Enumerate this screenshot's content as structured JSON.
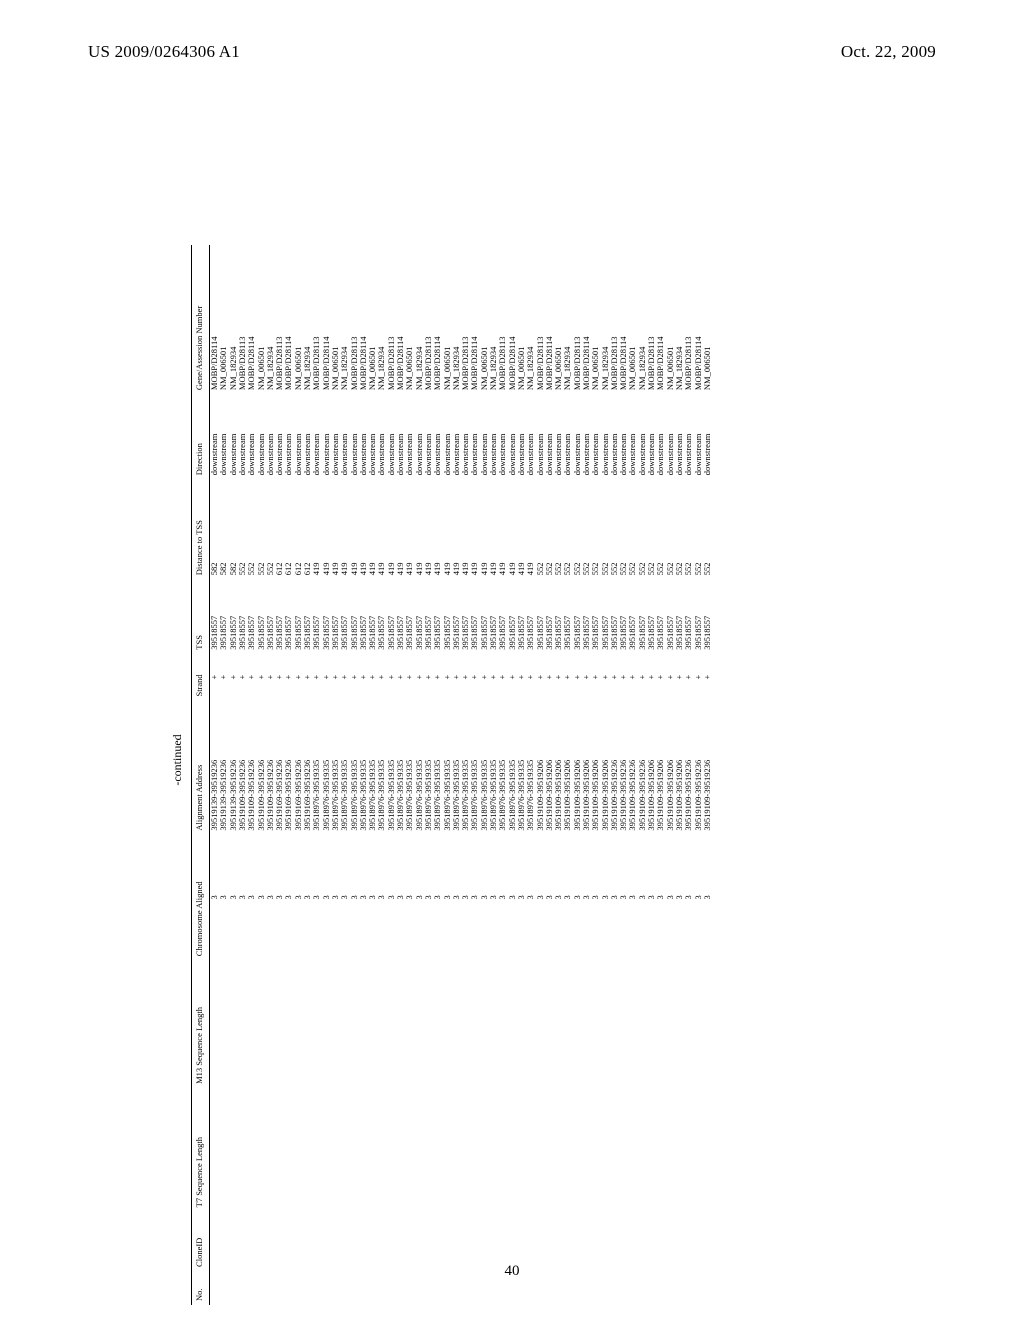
{
  "header": {
    "left": "US 2009/0264306 A1",
    "right": "Oct. 22, 2009",
    "page_number": "40",
    "continued_label": "-continued"
  },
  "table": {
    "columns": [
      "No.",
      "CloneID",
      "T7 Sequence Length",
      "M13 Sequence Length",
      "Chromosome Aligned",
      "Alignment Address",
      "Strand",
      "TSS",
      "Distance to TSS",
      "Direction",
      "Gene/Assession Number"
    ],
    "repeats": 3,
    "blocks": [
      {
        "chromosome": "3",
        "alignment": "39519139-39519236",
        "strand": "+",
        "tss": "39518557",
        "distance": "582",
        "direction": "downstream",
        "genes": [
          "MOBP/D28114",
          "NM_006501",
          "NM_182934"
        ]
      },
      {
        "chromosome": "3",
        "alignment": "39519109-39519236",
        "strand": "+",
        "tss": "39518557",
        "distance": "552",
        "direction": "downstream",
        "genes": [
          "MOBP/D28113",
          "MOBP/D28114",
          "NM_006501",
          "NM_182934"
        ]
      },
      {
        "chromosome": "3",
        "alignment": "39519169-39519236",
        "strand": "+",
        "tss": "39518557",
        "distance": "612",
        "direction": "downstream",
        "genes": [
          "MOBP/D28113",
          "MOBP/D28114",
          "NM_006501",
          "NM_182934"
        ]
      },
      {
        "chromosome": "3",
        "alignment": "39518976-39519335",
        "strand": "+",
        "tss": "39518557",
        "distance": "419",
        "direction": "downstream",
        "genes": [
          "MOBP/D28113",
          "MOBP/D28114",
          "NM_006501",
          "NM_182934"
        ]
      },
      {
        "chromosome": "3",
        "alignment": "39518976-39519335",
        "strand": "+",
        "tss": "39518557",
        "distance": "419",
        "direction": "downstream",
        "genes": [
          "MOBP/D28113",
          "MOBP/D28114",
          "NM_006501",
          "NM_182934"
        ]
      },
      {
        "chromosome": "3",
        "alignment": "39518976-39519335",
        "strand": "+",
        "tss": "39518557",
        "distance": "419",
        "direction": "downstream",
        "genes": [
          "MOBP/D28113",
          "MOBP/D28114",
          "NM_006501",
          "NM_182934"
        ]
      },
      {
        "chromosome": "3",
        "alignment": "39518976-39519335",
        "strand": "+",
        "tss": "39518557",
        "distance": "419",
        "direction": "downstream",
        "genes": [
          "MOBP/D28113",
          "MOBP/D28114",
          "NM_006501",
          "NM_182934"
        ]
      },
      {
        "chromosome": "3",
        "alignment": "39518976-39519335",
        "strand": "+",
        "tss": "39518557",
        "distance": "419",
        "direction": "downstream",
        "genes": [
          "MOBP/D28113",
          "MOBP/D28114",
          "NM_006501",
          "NM_182934"
        ]
      },
      {
        "chromosome": "3",
        "alignment": "39518976-39519335",
        "strand": "+",
        "tss": "39518557",
        "distance": "419",
        "direction": "downstream",
        "genes": [
          "MOBP/D28113",
          "MOBP/D28114",
          "NM_006501",
          "NM_182934"
        ]
      },
      {
        "chromosome": "3",
        "alignment": "39519109-39519206",
        "strand": "+",
        "tss": "39518557",
        "distance": "552",
        "direction": "downstream",
        "genes": [
          "MOBP/D28113",
          "MOBP/D28114",
          "NM_006501",
          "NM_182934"
        ]
      },
      {
        "chromosome": "3",
        "alignment": "39519109-39519206",
        "strand": "+",
        "tss": "39518557",
        "distance": "552",
        "direction": "downstream",
        "genes": [
          "MOBP/D28113",
          "MOBP/D28114",
          "NM_006501",
          "NM_182934"
        ]
      },
      {
        "chromosome": "3",
        "alignment": "39519109-39519236",
        "strand": "+",
        "tss": "39518557",
        "distance": "552",
        "direction": "downstream",
        "genes": [
          "MOBP/D28113",
          "MOBP/D28114",
          "NM_006501",
          "NM_182934"
        ]
      },
      {
        "chromosome": "3",
        "alignment": "39519109-39519206",
        "strand": "+",
        "tss": "39518557",
        "distance": "552",
        "direction": "downstream",
        "genes": [
          "MOBP/D28113",
          "MOBP/D28114",
          "NM_006501",
          "NM_182934"
        ]
      },
      {
        "chromosome": "3",
        "alignment": "39519109-39519236",
        "strand": "+",
        "tss": "39518557",
        "distance": "552",
        "direction": "downstream",
        "genes": [
          "MOBP/D28113",
          "MOBP/D28114",
          "NM_006501"
        ]
      }
    ]
  }
}
